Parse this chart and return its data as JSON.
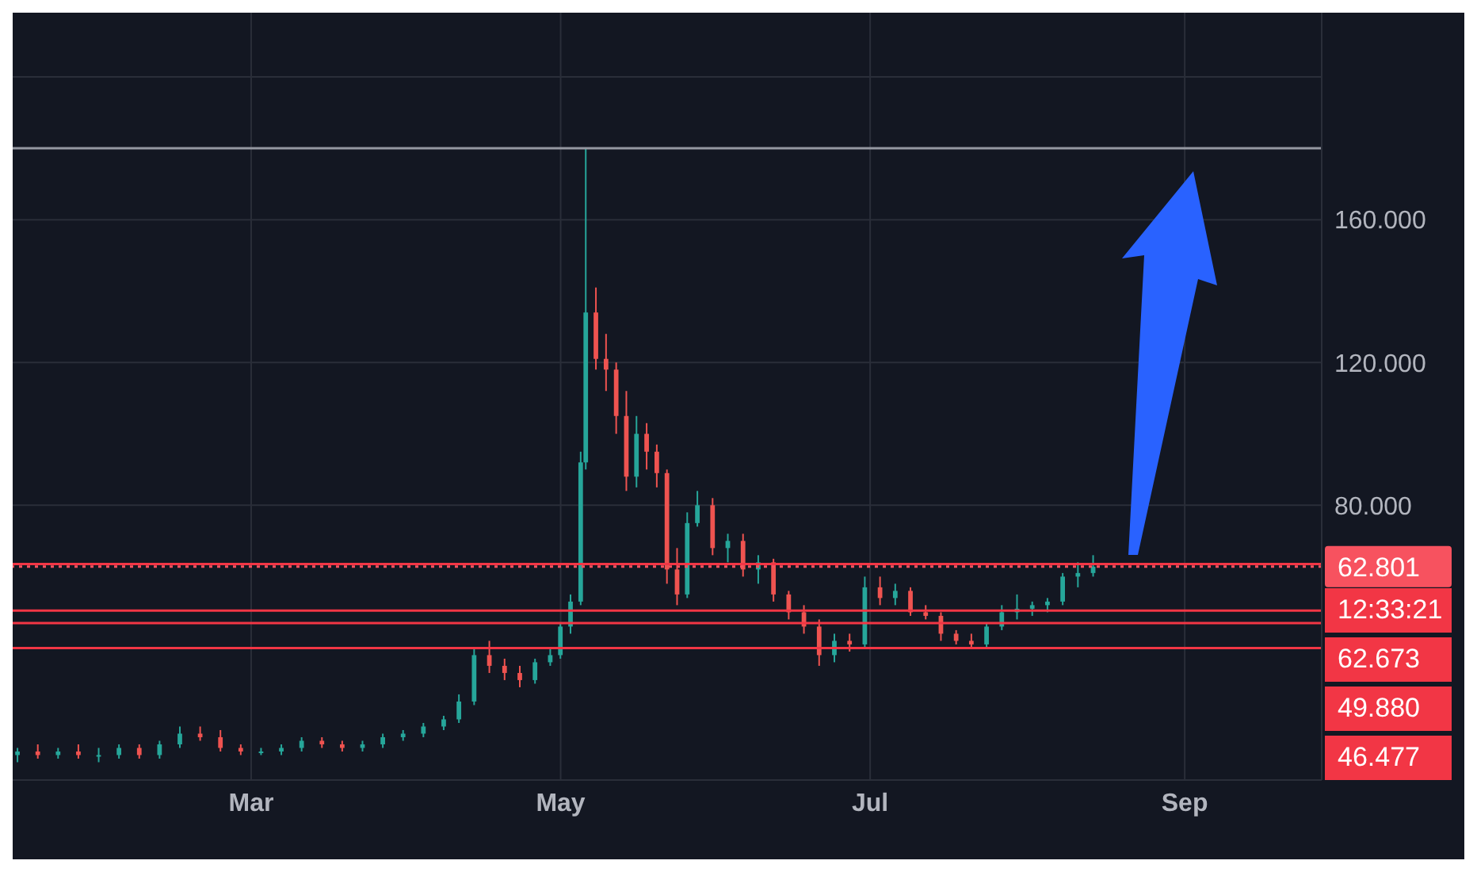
{
  "chart_data": {
    "type": "candlestick",
    "x": [
      "--01-14",
      "--01-18",
      "--01-22",
      "--01-26",
      "--01-30",
      "--02-03",
      "--02-07",
      "--02-11",
      "--02-15",
      "--02-19",
      "--02-23",
      "--02-27",
      "--03-03",
      "--03-07",
      "--03-11",
      "--03-15",
      "--03-19",
      "--03-23",
      "--03-27",
      "--03-31",
      "--04-04",
      "--04-08",
      "--04-11",
      "--04-14",
      "--04-17",
      "--04-20",
      "--04-23",
      "--04-26",
      "--04-29",
      "--05-01",
      "--05-03",
      "--05-05",
      "--05-06",
      "--05-08",
      "--05-10",
      "--05-12",
      "--05-14",
      "--05-16",
      "--05-18",
      "--05-20",
      "--05-22",
      "--05-24",
      "--05-26",
      "--05-28",
      "--05-31",
      "--06-03",
      "--06-06",
      "--06-09",
      "--06-12",
      "--06-15",
      "--06-18",
      "--06-21",
      "--06-24",
      "--06-27",
      "--06-30",
      "--07-03",
      "--07-06",
      "--07-09",
      "--07-12",
      "--07-15",
      "--07-18",
      "--07-21",
      "--07-24",
      "--07-27",
      "--07-30",
      "--08-02",
      "--08-05",
      "--08-08",
      "--08-11",
      "--08-14"
    ],
    "ohlc": [
      [
        10,
        12,
        8,
        11
      ],
      [
        11,
        13,
        9,
        10
      ],
      [
        10,
        12,
        9,
        11
      ],
      [
        11,
        13,
        9,
        10
      ],
      [
        10,
        12,
        8,
        10
      ],
      [
        10,
        13,
        9,
        12
      ],
      [
        12,
        13,
        9,
        10
      ],
      [
        10,
        14,
        9,
        13
      ],
      [
        13,
        18,
        12,
        16
      ],
      [
        16,
        18,
        14,
        15
      ],
      [
        15,
        17,
        11,
        12
      ],
      [
        12,
        13,
        10,
        11
      ],
      [
        11,
        12,
        10,
        11
      ],
      [
        11,
        13,
        10,
        12
      ],
      [
        12,
        15,
        11,
        14
      ],
      [
        14,
        15,
        12,
        13
      ],
      [
        13,
        14,
        11,
        12
      ],
      [
        12,
        14,
        11,
        13
      ],
      [
        13,
        16,
        12,
        15
      ],
      [
        15,
        17,
        14,
        16
      ],
      [
        16,
        19,
        15,
        18
      ],
      [
        18,
        21,
        17,
        20
      ],
      [
        20,
        27,
        19,
        25
      ],
      [
        25,
        40,
        24,
        38
      ],
      [
        38,
        42,
        33,
        35
      ],
      [
        35,
        37,
        31,
        33
      ],
      [
        33,
        35,
        29,
        31
      ],
      [
        31,
        37,
        30,
        36
      ],
      [
        36,
        40,
        35,
        38
      ],
      [
        38,
        47,
        37,
        46
      ],
      [
        46,
        55,
        44,
        53
      ],
      [
        53,
        95,
        52,
        92
      ],
      [
        92,
        180,
        90,
        134
      ],
      [
        134,
        141,
        118,
        121
      ],
      [
        121,
        128,
        112,
        118
      ],
      [
        118,
        120,
        100,
        105
      ],
      [
        105,
        112,
        84,
        88
      ],
      [
        88,
        105,
        85,
        100
      ],
      [
        100,
        103,
        90,
        95
      ],
      [
        95,
        97,
        85,
        89
      ],
      [
        89,
        90,
        58,
        62
      ],
      [
        62,
        68,
        52,
        55
      ],
      [
        55,
        78,
        54,
        75
      ],
      [
        75,
        84,
        74,
        80
      ],
      [
        80,
        82,
        66,
        68
      ],
      [
        68,
        72,
        64,
        70
      ],
      [
        70,
        72,
        60,
        62
      ],
      [
        62,
        66,
        58,
        64
      ],
      [
        64,
        65,
        53,
        55
      ],
      [
        55,
        56,
        48,
        50
      ],
      [
        50,
        52,
        44,
        46
      ],
      [
        46,
        48,
        35,
        38
      ],
      [
        38,
        44,
        36,
        42
      ],
      [
        42,
        44,
        39,
        41
      ],
      [
        41,
        60,
        40,
        57
      ],
      [
        57,
        60,
        52,
        54
      ],
      [
        54,
        58,
        52,
        56
      ],
      [
        56,
        57,
        49,
        50
      ],
      [
        50,
        52,
        48,
        49
      ],
      [
        49,
        50,
        42,
        44
      ],
      [
        44,
        45,
        41,
        42
      ],
      [
        42,
        44,
        40,
        41
      ],
      [
        41,
        47,
        40,
        46
      ],
      [
        46,
        52,
        45,
        50
      ],
      [
        50,
        55,
        48,
        51
      ],
      [
        51,
        53,
        49,
        52
      ],
      [
        52,
        54,
        50,
        53
      ],
      [
        53,
        61,
        52,
        60
      ],
      [
        60,
        64,
        57,
        61
      ],
      [
        61,
        66,
        60,
        62.801
      ]
    ],
    "xlim": [
      "--01-13",
      "--09-28"
    ],
    "xticks": [
      {
        "value": "--03-01",
        "label": "Mar"
      },
      {
        "value": "--05-01",
        "label": "May"
      },
      {
        "value": "--07-01",
        "label": "Jul"
      },
      {
        "value": "--09-01",
        "label": "Sep"
      }
    ],
    "ylim": [
      3,
      218
    ],
    "yticks": [
      {
        "value": 80,
        "label": "80.000"
      },
      {
        "value": 120,
        "label": "120.000"
      },
      {
        "value": 160,
        "label": "160.000"
      },
      {
        "value": 200,
        "label": null
      }
    ],
    "grid": true,
    "ref_lines": [
      {
        "axis": "y",
        "value": 180,
        "color": "#9598a1",
        "line_style": "solid"
      },
      {
        "axis": "y",
        "value": 62.801,
        "label": "62.801",
        "color": "#f7525f",
        "line_style": "dotted"
      },
      {
        "axis": "y",
        "value": 63.5,
        "color": "#f23645",
        "line_style": "solid"
      },
      {
        "axis": "y",
        "value": 50.5,
        "color": "#f23645",
        "line_style": "solid"
      },
      {
        "axis": "y",
        "value": 47,
        "color": "#f23645",
        "line_style": "solid"
      },
      {
        "axis": "y",
        "value": 40,
        "color": "#f23645",
        "line_style": "solid"
      }
    ],
    "annotations": [
      "12:33:21",
      "62.673",
      "49.880",
      "46.477"
    ]
  }
}
